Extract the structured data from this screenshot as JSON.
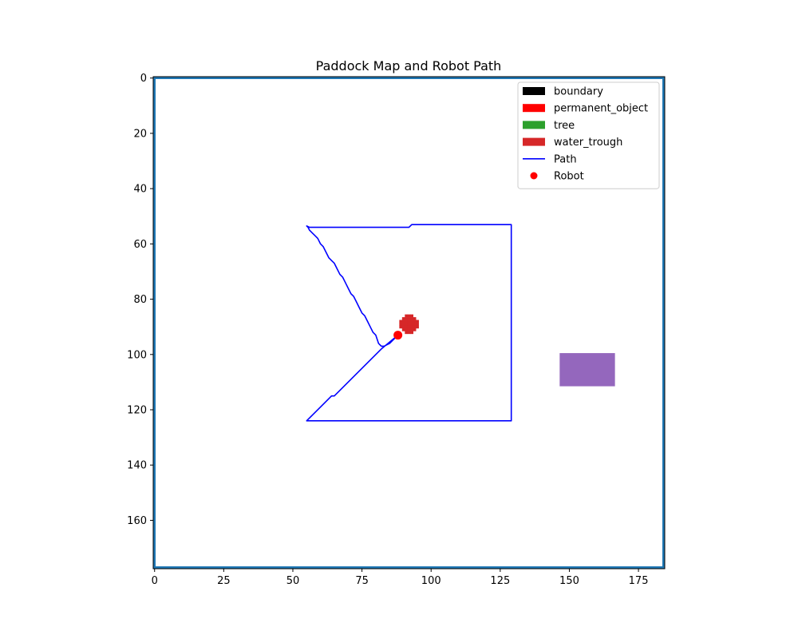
{
  "chart_data": {
    "type": "heatmap",
    "title": "Paddock Map and Robot Path",
    "xlabel": "",
    "ylabel": "",
    "xlim": [
      -0.5,
      184.5
    ],
    "ylim": [
      177.5,
      -0.5
    ],
    "y_axis_inverted": true,
    "grid": false,
    "xticks": [
      0,
      25,
      50,
      75,
      100,
      125,
      150,
      175
    ],
    "yticks": [
      0,
      20,
      40,
      60,
      80,
      100,
      120,
      140,
      160
    ],
    "legend": {
      "placement": "top-right",
      "entries": [
        {
          "label": "boundary",
          "kind": "patch",
          "color": "#000000"
        },
        {
          "label": "permanent_object",
          "kind": "patch",
          "color": "#ff0000"
        },
        {
          "label": "tree",
          "kind": "patch",
          "color": "#2ca02c"
        },
        {
          "label": "water_trough",
          "kind": "patch",
          "color": "#d62728"
        },
        {
          "label": "Path",
          "kind": "line",
          "color": "#0000ff"
        },
        {
          "label": "Robot",
          "kind": "marker",
          "color": "#ff0000"
        }
      ]
    },
    "map_regions": [
      {
        "name": "boundary-frame",
        "type": "rect",
        "x0": 0,
        "x1": 184,
        "y0": 0,
        "y1": 177,
        "color": "#1f77b4"
      },
      {
        "name": "purple-object",
        "type": "rect",
        "x0": 147,
        "x1": 166,
        "y0": 100,
        "y1": 111,
        "color": "#9467bd"
      },
      {
        "name": "water-trough-blob",
        "type": "blob",
        "cx": 92,
        "cy": 89,
        "r": 3.5,
        "color": "#d62728"
      }
    ],
    "series": [
      {
        "name": "Path",
        "color": "#0000ff",
        "points": [
          [
            88,
            93
          ],
          [
            85,
            96
          ],
          [
            83,
            97
          ],
          [
            82,
            97
          ],
          [
            81,
            96
          ],
          [
            80,
            93
          ],
          [
            79,
            92
          ],
          [
            78,
            90
          ],
          [
            77,
            88
          ],
          [
            76,
            86
          ],
          [
            75,
            85
          ],
          [
            74,
            83
          ],
          [
            73,
            81
          ],
          [
            72,
            79
          ],
          [
            71,
            78
          ],
          [
            70,
            76
          ],
          [
            69,
            74
          ],
          [
            68,
            72
          ],
          [
            67,
            71
          ],
          [
            66,
            69
          ],
          [
            65,
            67
          ],
          [
            64,
            66
          ],
          [
            63,
            65
          ],
          [
            62,
            63
          ],
          [
            61,
            61
          ],
          [
            60,
            60
          ],
          [
            59,
            58
          ],
          [
            58,
            57
          ],
          [
            57,
            56
          ],
          [
            56,
            55
          ],
          [
            55.5,
            54
          ],
          [
            55,
            53.5
          ],
          [
            56,
            54
          ],
          [
            92,
            54
          ],
          [
            93,
            53
          ],
          [
            129,
            53
          ],
          [
            129,
            124
          ],
          [
            55,
            124
          ],
          [
            64,
            115
          ],
          [
            65,
            115
          ],
          [
            82,
            98
          ],
          [
            88,
            93
          ]
        ]
      }
    ],
    "robot": {
      "x": 88,
      "y": 93,
      "color": "#ff0000"
    }
  }
}
